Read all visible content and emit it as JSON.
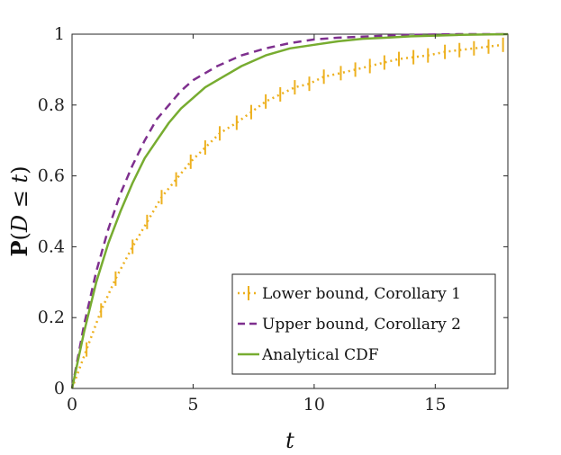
{
  "chart_data": {
    "type": "line",
    "title": "",
    "xlabel": "t",
    "ylabel": {
      "prefix": "P",
      "open": "(",
      "var": "D",
      "op": " ≤ ",
      "t": "t",
      "close": ")"
    },
    "xlim": [
      0,
      18
    ],
    "ylim": [
      0,
      1
    ],
    "xticks": [
      0,
      5,
      10,
      15
    ],
    "xtick_labels": [
      "0",
      "5",
      "10",
      "15"
    ],
    "yticks": [
      0,
      0.2,
      0.4,
      0.6,
      0.8,
      1
    ],
    "ytick_labels": [
      "0",
      "0.2",
      "0.4",
      "0.6",
      "0.8",
      "1"
    ],
    "grid": false,
    "legend_position": "bottom-right",
    "series": [
      {
        "name": "Lower bound, Corollary 1",
        "color": "#EDB120",
        "style": "dotted-with-errorbars",
        "x": [
          0,
          0.6,
          1.2,
          1.8,
          2.5,
          3.1,
          3.7,
          4.3,
          4.9,
          5.5,
          6.1,
          6.8,
          7.4,
          8.0,
          8.6,
          9.2,
          9.8,
          10.4,
          11.1,
          11.7,
          12.3,
          12.9,
          13.5,
          14.1,
          14.7,
          15.4,
          16.0,
          16.6,
          17.2,
          17.8
        ],
        "y": [
          0,
          0.11,
          0.22,
          0.31,
          0.4,
          0.47,
          0.54,
          0.59,
          0.64,
          0.68,
          0.72,
          0.75,
          0.78,
          0.81,
          0.83,
          0.85,
          0.86,
          0.88,
          0.89,
          0.9,
          0.91,
          0.92,
          0.93,
          0.935,
          0.94,
          0.95,
          0.955,
          0.96,
          0.965,
          0.97
        ]
      },
      {
        "name": "Upper bound, Corollary 2",
        "color": "#7E2F8E",
        "style": "dashed",
        "x": [
          0,
          0.5,
          1,
          1.5,
          2,
          2.5,
          3,
          3.5,
          4,
          4.5,
          5,
          5.5,
          6,
          7,
          8,
          9,
          10,
          11,
          12,
          13,
          14,
          15,
          16,
          17,
          18
        ],
        "y": [
          0,
          0.18,
          0.33,
          0.45,
          0.55,
          0.63,
          0.7,
          0.76,
          0.8,
          0.84,
          0.87,
          0.89,
          0.91,
          0.94,
          0.96,
          0.975,
          0.985,
          0.99,
          0.993,
          0.996,
          0.998,
          0.999,
          1.0,
          1.0,
          1.0
        ]
      },
      {
        "name": "Analytical CDF",
        "color": "#77AC30",
        "style": "solid",
        "x": [
          0,
          0.5,
          1,
          1.5,
          2,
          2.5,
          3,
          3.5,
          4,
          4.5,
          5,
          5.5,
          6,
          7,
          8,
          9,
          10,
          11,
          12,
          13,
          14,
          15,
          16,
          17,
          18
        ],
        "y": [
          0,
          0.16,
          0.3,
          0.41,
          0.5,
          0.58,
          0.65,
          0.7,
          0.75,
          0.79,
          0.82,
          0.85,
          0.87,
          0.91,
          0.94,
          0.96,
          0.97,
          0.98,
          0.987,
          0.99,
          0.994,
          0.996,
          0.998,
          0.999,
          1.0
        ]
      }
    ]
  }
}
